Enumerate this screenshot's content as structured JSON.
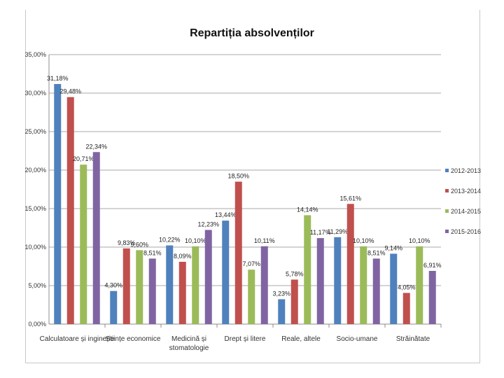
{
  "chart_data": {
    "type": "bar",
    "title": "Repartiția absolvenților",
    "xlabel": "",
    "ylabel": "",
    "ylim": [
      0,
      35
    ],
    "yticks": [
      "0,00%",
      "5,00%",
      "10,00%",
      "15,00%",
      "20,00%",
      "25,00%",
      "30,00%",
      "35,00%"
    ],
    "grid": true,
    "legend_position": "right",
    "categories": [
      [
        "Calculatoare și inginerie"
      ],
      [
        "Științe economice"
      ],
      [
        "Medicină și",
        "stomatologie"
      ],
      [
        "Drept și litere"
      ],
      [
        "Reale, altele"
      ],
      [
        "Socio-umane"
      ],
      [
        "Străinătate"
      ]
    ],
    "series": [
      {
        "name": "2012-2013",
        "color": "#4f81bd",
        "values": [
          31.18,
          4.3,
          10.22,
          13.44,
          3.23,
          11.29,
          9.14
        ],
        "labels": [
          "31,18%",
          "4,30%",
          "10,22%",
          "13,44%",
          "3,23%",
          "11,29%",
          "9,14%"
        ]
      },
      {
        "name": "2013-2014",
        "color": "#c0504d",
        "values": [
          29.48,
          9.83,
          8.09,
          18.5,
          5.78,
          15.61,
          4.05
        ],
        "labels": [
          "29,48%",
          "9,83%",
          "8,09%",
          "18,50%",
          "5,78%",
          "15,61%",
          "4,05%"
        ]
      },
      {
        "name": "2014-2015",
        "color": "#9bbb59",
        "values": [
          20.71,
          9.6,
          10.1,
          7.07,
          14.14,
          10.1,
          10.1
        ],
        "labels": [
          "20,71%",
          "9,60%",
          "10,10%",
          "7,07%",
          "14,14%",
          "10,10%",
          "10,10%"
        ]
      },
      {
        "name": "2015-2016",
        "color": "#8064a2",
        "values": [
          22.34,
          8.51,
          12.23,
          10.11,
          11.17,
          8.51,
          6.91
        ],
        "labels": [
          "22,34%",
          "8,51%",
          "12,23%",
          "10,11%",
          "11,17%",
          "8,51%",
          "6,91%"
        ]
      }
    ]
  }
}
